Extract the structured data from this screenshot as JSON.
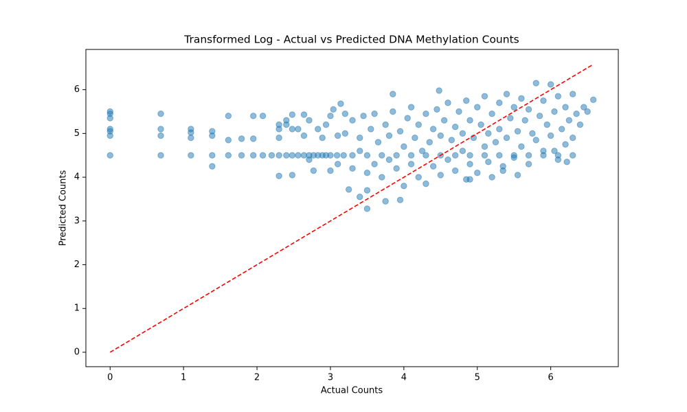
{
  "chart_data": {
    "type": "scatter",
    "title": "Transformed Log - Actual vs Predicted DNA Methylation Counts",
    "xlabel": "Actual Counts",
    "ylabel": "Predicted Counts",
    "color": "#1f77b4",
    "x": [
      0,
      0.69,
      1.1,
      1.39,
      1.61,
      1.79,
      1.95,
      2.08,
      2.2,
      2.3,
      2.4,
      2.48,
      2.56,
      2.64,
      2.71,
      2.77,
      2.83,
      2.89,
      2.94,
      3.0,
      3.09,
      3.18,
      3.3,
      3.5,
      3.7,
      3.9,
      4.1,
      4.3,
      4.5,
      4.7,
      4.9,
      5.1,
      5.3,
      5.5,
      5.7,
      5.9,
      6.1,
      6.3,
      0,
      0,
      0,
      0,
      0,
      0,
      0.69,
      0.69,
      0.69,
      1.1,
      1.1,
      1.1,
      1.39,
      1.39,
      1.39,
      1.61,
      1.61,
      1.79,
      1.95,
      1.95,
      2.08,
      2.3,
      2.3,
      2.3,
      2.3,
      2.4,
      2.4,
      2.48,
      2.48,
      2.48,
      2.56,
      2.64,
      2.64,
      2.71,
      2.71,
      2.77,
      2.83,
      2.89,
      2.94,
      3.0,
      3.0,
      3.04,
      3.14,
      3.2,
      3.3,
      3.3,
      3.4,
      3.4,
      3.45,
      3.5,
      3.55,
      3.6,
      3.6,
      3.65,
      3.7,
      3.75,
      3.8,
      3.8,
      3.85,
      3.9,
      3.95,
      4.0,
      4.0,
      4.05,
      4.1,
      4.1,
      4.15,
      4.2,
      4.2,
      4.25,
      4.3,
      4.3,
      4.35,
      4.4,
      4.4,
      4.45,
      4.5,
      4.5,
      4.55,
      4.6,
      4.6,
      4.65,
      4.7,
      4.7,
      4.75,
      4.8,
      4.8,
      4.85,
      4.85,
      4.9,
      4.9,
      4.95,
      5.0,
      5.0,
      5.05,
      5.1,
      5.1,
      5.15,
      5.15,
      5.2,
      5.2,
      5.25,
      5.3,
      5.3,
      5.35,
      5.4,
      5.4,
      5.45,
      5.5,
      5.5,
      5.55,
      5.55,
      5.6,
      5.6,
      5.65,
      5.7,
      5.7,
      5.75,
      5.8,
      5.8,
      5.85,
      5.9,
      5.9,
      5.95,
      6.0,
      6.0,
      6.05,
      6.1,
      6.1,
      6.15,
      6.2,
      6.2,
      6.25,
      6.3,
      6.3,
      6.35,
      6.4,
      6.45,
      6.5,
      6.58,
      3.5,
      3.4,
      3.75,
      3.95,
      3.85,
      4.48,
      3.25,
      3.5,
      3.1,
      3.1,
      3.2,
      4.9,
      5.35,
      6.05,
      6.22
    ],
    "y": [
      4.5,
      4.5,
      4.5,
      4.5,
      4.5,
      4.5,
      4.5,
      4.5,
      4.5,
      4.5,
      4.5,
      4.5,
      4.5,
      4.5,
      4.5,
      4.5,
      4.5,
      4.5,
      4.5,
      4.5,
      4.5,
      4.5,
      4.5,
      4.5,
      4.5,
      4.5,
      4.5,
      4.5,
      4.5,
      4.5,
      4.5,
      4.5,
      4.5,
      4.5,
      4.5,
      4.5,
      4.5,
      4.5,
      5.5,
      5.45,
      5.35,
      5.1,
      5.05,
      4.95,
      5.45,
      5.1,
      4.95,
      5.1,
      5.02,
      4.9,
      5.05,
      4.95,
      4.25,
      5.4,
      4.85,
      4.88,
      5.4,
      4.88,
      5.4,
      5.2,
      5.1,
      4.9,
      4.03,
      5.3,
      5.2,
      5.43,
      5.1,
      4.05,
      5.1,
      5.43,
      4.95,
      4.4,
      5.3,
      4.15,
      5.1,
      4.9,
      5.2,
      5.4,
      4.15,
      5.55,
      5.68,
      5.0,
      5.3,
      4.2,
      4.9,
      4.6,
      5.4,
      4.1,
      5.1,
      4.3,
      5.45,
      4.8,
      4.0,
      5.2,
      4.4,
      4.95,
      5.5,
      4.2,
      5.05,
      3.8,
      4.7,
      5.35,
      4.3,
      5.6,
      4.9,
      4.0,
      5.2,
      4.6,
      5.45,
      3.85,
      4.8,
      5.1,
      4.25,
      5.55,
      4.05,
      4.95,
      5.3,
      4.4,
      5.7,
      4.85,
      5.15,
      4.15,
      5.5,
      4.6,
      5.0,
      3.95,
      5.75,
      5.3,
      4.3,
      4.9,
      5.6,
      4.1,
      5.2,
      4.7,
      5.85,
      4.35,
      5.0,
      5.45,
      4.0,
      4.8,
      5.7,
      5.1,
      4.25,
      5.9,
      4.9,
      5.35,
      4.45,
      5.6,
      4.05,
      5.05,
      5.8,
      4.7,
      5.3,
      4.3,
      5.55,
      5.0,
      6.15,
      4.85,
      5.4,
      4.6,
      5.75,
      5.2,
      6.12,
      4.95,
      5.5,
      4.4,
      5.85,
      5.1,
      5.6,
      4.75,
      5.3,
      5.9,
      4.9,
      5.45,
      5.2,
      5.6,
      5.5,
      5.77,
      3.28,
      3.55,
      3.45,
      3.48,
      5.9,
      5.98,
      3.72,
      3.7,
      4.95,
      4.3,
      5.45,
      3.95,
      4.15,
      4.6,
      4.35
    ],
    "reference_line": {
      "x": [
        0,
        6.58
      ],
      "y": [
        0,
        6.58
      ],
      "color": "#ff0000"
    },
    "xlim": [
      -0.33,
      6.92
    ],
    "ylim": [
      -0.33,
      6.92
    ],
    "xticks": [
      0,
      1,
      2,
      3,
      4,
      5,
      6
    ],
    "yticks": [
      0,
      1,
      2,
      3,
      4,
      5,
      6
    ]
  }
}
